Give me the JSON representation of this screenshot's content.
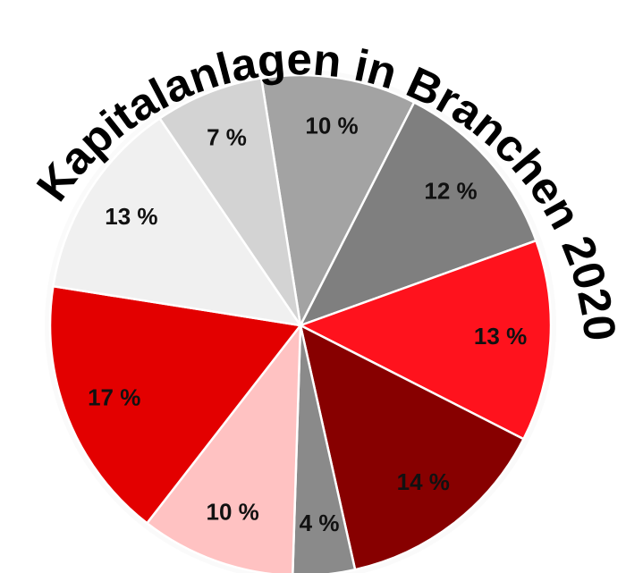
{
  "chart_data": {
    "type": "pie",
    "title": "Kapitalanlagen in Branchen 2020",
    "values": [
      10,
      12,
      13,
      14,
      4,
      10,
      17,
      13,
      7
    ],
    "value_labels": [
      "10 %",
      "12 %",
      "13 %",
      "14 %",
      "4 %",
      "10 %",
      "17 %",
      "13 %",
      "7 %"
    ],
    "colors": [
      "#a3a3a3",
      "#7f7f7f",
      "#ff121d",
      "#870000",
      "#8a8a8a",
      "#ffc2c2",
      "#e30000",
      "#f0f0f0",
      "#d3d3d3"
    ]
  }
}
